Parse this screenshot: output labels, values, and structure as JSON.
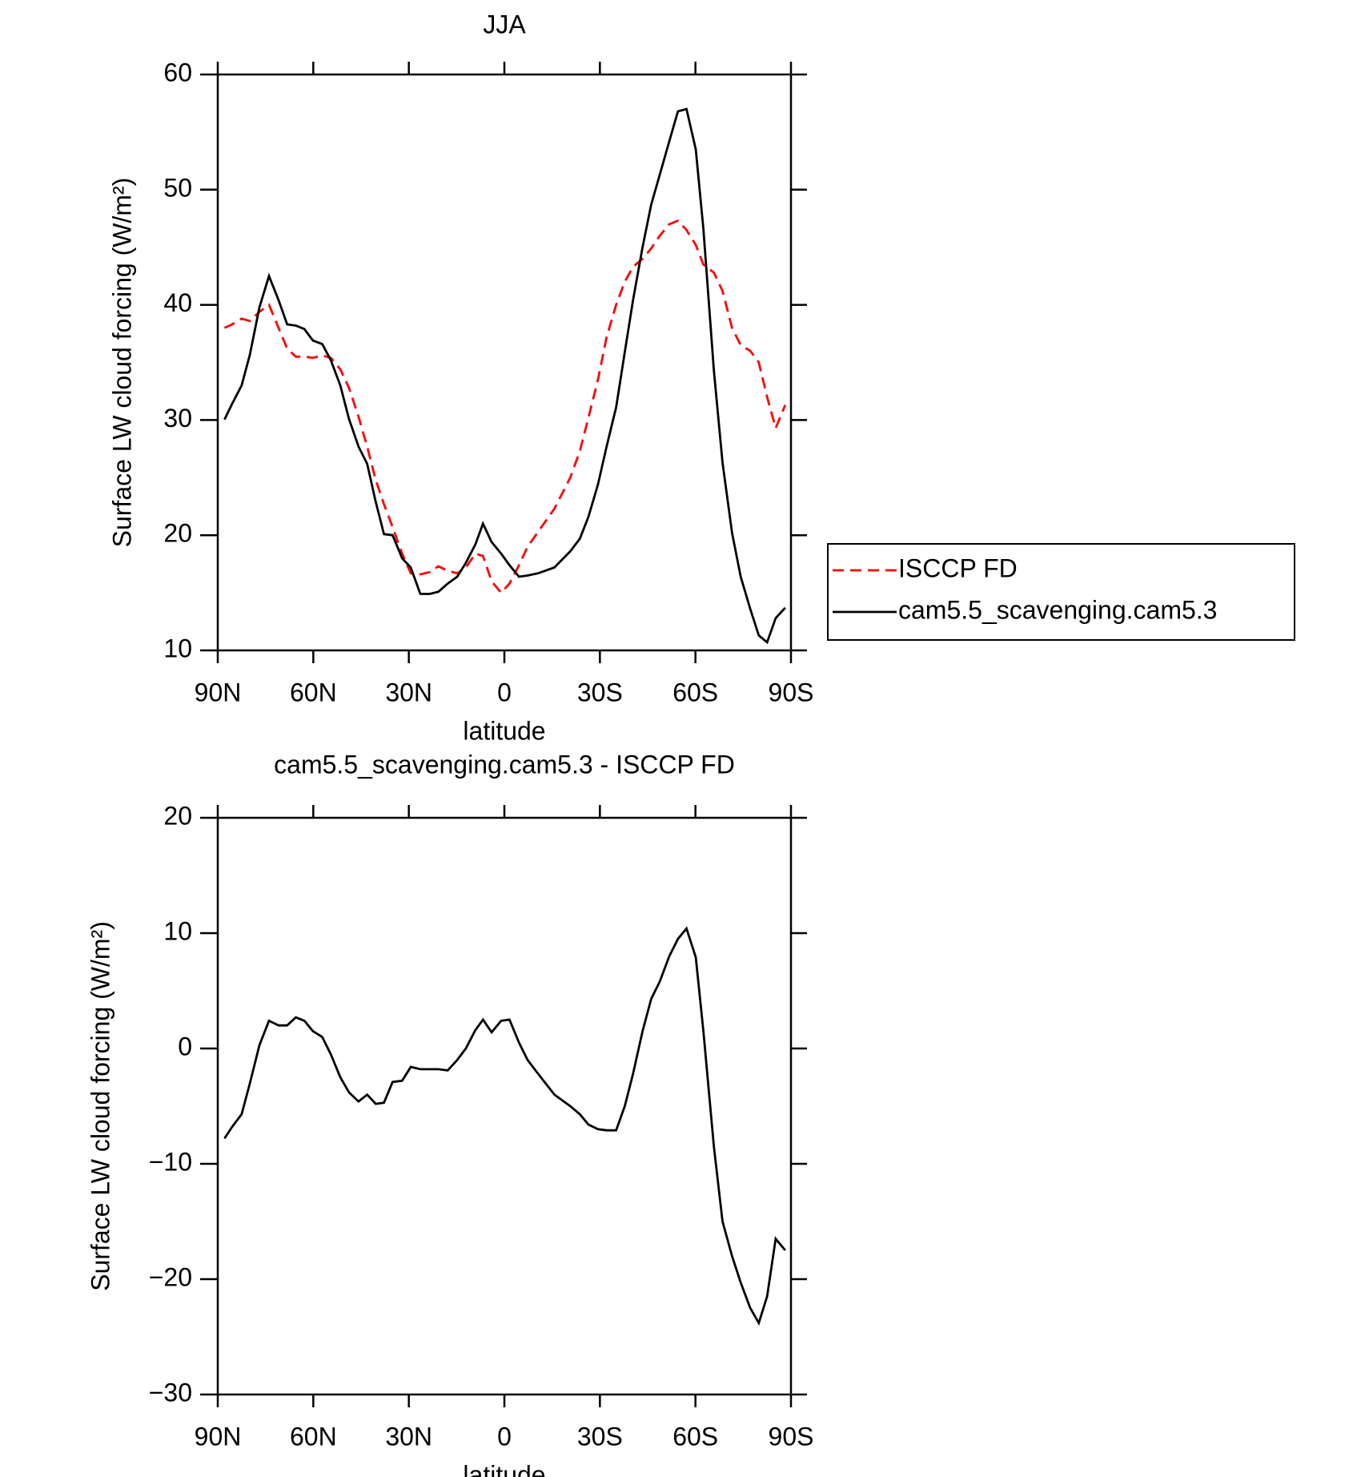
{
  "chart_data": [
    {
      "type": "line",
      "title": "JJA",
      "x_label": "latitude",
      "y_label": "Surface LW cloud forcing (W/m²)",
      "x": [
        87.9,
        85.5,
        82.5,
        79.9,
        76.9,
        73.9,
        70.9,
        68.2,
        65.5,
        62.8,
        60.1,
        57.2,
        54.5,
        51.5,
        48.8,
        45.8,
        43.1,
        40.4,
        37.8,
        35.1,
        32.1,
        29.4,
        26.4,
        23.4,
        20.7,
        17.8,
        14.8,
        12.1,
        9.1,
        6.7,
        4.0,
        1.0,
        -1.6,
        -4.6,
        -7.3,
        -10.6,
        -15.7,
        -20.7,
        -23.7,
        -26.4,
        -29.4,
        -32.1,
        -35.1,
        -37.8,
        -40.4,
        -43.4,
        -46.1,
        -48.8,
        -51.8,
        -54.5,
        -57.2,
        -60.1,
        -62.5,
        -65.8,
        -68.5,
        -71.5,
        -74.2,
        -77.2,
        -79.9,
        -82.5,
        -85.2,
        -88.2
      ],
      "series": [
        {
          "name": "ISCCP FD",
          "color": "#ff0000",
          "dashed": true,
          "values": [
            38.0,
            38.3,
            38.8,
            38.6,
            39.4,
            40.0,
            38.0,
            36.2,
            35.5,
            35.5,
            35.4,
            35.6,
            35.4,
            34.4,
            32.8,
            30.3,
            27.7,
            24.8,
            22.7,
            20.7,
            18.4,
            16.7,
            16.6,
            16.8,
            17.3,
            16.9,
            16.7,
            17.2,
            18.4,
            18.2,
            16.0,
            15.0,
            15.8,
            17.4,
            19.0,
            20.3,
            22.3,
            25.0,
            27.3,
            30.2,
            33.5,
            37.2,
            40.0,
            42.0,
            43.3,
            44.0,
            44.9,
            46.0,
            47.0,
            47.3,
            46.5,
            45.2,
            43.5,
            42.8,
            41.2,
            38.0,
            36.5,
            36.0,
            35.0,
            32.0,
            29.3,
            31.3
          ]
        },
        {
          "name": "cam5.5_scavenging.cam5.3",
          "color": "#000000",
          "dashed": false,
          "values": [
            30.05,
            31.4,
            33.0,
            35.7,
            39.8,
            42.5,
            40.4,
            38.3,
            38.2,
            37.9,
            36.9,
            36.6,
            35.2,
            33.0,
            30.1,
            27.7,
            26.2,
            22.9,
            20.1,
            20.0,
            18.0,
            17.2,
            14.9,
            14.9,
            15.1,
            15.8,
            16.4,
            17.6,
            19.2,
            21.0,
            19.4,
            18.4,
            17.4,
            16.4,
            16.5,
            16.7,
            17.2,
            18.6,
            19.7,
            21.6,
            24.4,
            27.7,
            31.1,
            35.9,
            40.4,
            45.0,
            48.7,
            51.3,
            54.2,
            56.8,
            57.0,
            53.5,
            46.6,
            34.3,
            26.3,
            20.2,
            16.4,
            13.6,
            11.3,
            10.7,
            12.8,
            13.7
          ]
        }
      ],
      "xlim": [
        90,
        -90
      ],
      "xticks": [
        {
          "value": 90,
          "label": "90N"
        },
        {
          "value": 60,
          "label": "60N"
        },
        {
          "value": 30,
          "label": "30N"
        },
        0,
        {
          "value": -30,
          "label": "30S"
        },
        {
          "value": -60,
          "label": "60S"
        },
        {
          "value": -90,
          "label": "90S"
        }
      ],
      "ylim": [
        10,
        60
      ],
      "yticks": [
        10,
        20,
        30,
        40,
        50,
        60
      ],
      "legend": "right"
    },
    {
      "type": "line",
      "title": "cam5.5_scavenging.cam5.3 - ISCCP FD",
      "x_label": "latitude",
      "y_label": "Surface LW cloud forcing (W/m²)",
      "x": [
        87.9,
        85.5,
        82.5,
        79.9,
        76.9,
        73.9,
        70.9,
        68.2,
        65.5,
        62.8,
        60.1,
        57.2,
        54.5,
        51.5,
        48.8,
        45.8,
        43.1,
        40.4,
        37.8,
        35.1,
        32.1,
        29.4,
        26.4,
        23.4,
        20.7,
        17.8,
        14.8,
        12.1,
        9.1,
        6.7,
        4.0,
        1.0,
        -1.6,
        -4.6,
        -7.3,
        -10.6,
        -15.7,
        -20.7,
        -23.7,
        -26.4,
        -29.4,
        -32.1,
        -35.1,
        -37.8,
        -40.4,
        -43.4,
        -46.1,
        -48.8,
        -51.8,
        -54.5,
        -57.2,
        -60.1,
        -62.5,
        -65.8,
        -68.5,
        -71.5,
        -74.2,
        -77.2,
        -79.9,
        -82.5,
        -85.2,
        -88.2
      ],
      "series": [
        {
          "color": "#000000",
          "dashed": false,
          "values": [
            -7.8,
            -6.8,
            -5.7,
            -3.0,
            0.3,
            2.4,
            2.0,
            2.0,
            2.7,
            2.4,
            1.5,
            1.0,
            -0.5,
            -2.5,
            -3.8,
            -4.6,
            -4.0,
            -4.8,
            -4.7,
            -2.9,
            -2.8,
            -1.6,
            -1.8,
            -1.8,
            -1.8,
            -1.9,
            -1.0,
            0.0,
            1.6,
            2.5,
            1.4,
            2.4,
            2.5,
            0.5,
            -1.0,
            -2.2,
            -4.0,
            -5.0,
            -5.7,
            -6.6,
            -7.0,
            -7.1,
            -7.1,
            -5.0,
            -2.2,
            1.5,
            4.3,
            5.8,
            8.0,
            9.5,
            10.4,
            7.9,
            1.5,
            -8.5,
            -15.0,
            -18.0,
            -20.3,
            -22.5,
            -23.8,
            -21.5,
            -16.5,
            -17.5
          ]
        }
      ],
      "xlim": [
        90,
        -90
      ],
      "xticks": [
        {
          "value": 90,
          "label": "90N"
        },
        {
          "value": 60,
          "label": "60N"
        },
        {
          "value": 30,
          "label": "30N"
        },
        0,
        {
          "value": -30,
          "label": "30S"
        },
        {
          "value": -60,
          "label": "60S"
        },
        {
          "value": -90,
          "label": "90S"
        }
      ],
      "ylim": [
        -30,
        20
      ],
      "yticks": [
        {
          "value": -30,
          "label": "−30"
        },
        {
          "value": -20,
          "label": "−20"
        },
        {
          "value": -10,
          "label": "−10"
        },
        0,
        10,
        20
      ]
    }
  ]
}
